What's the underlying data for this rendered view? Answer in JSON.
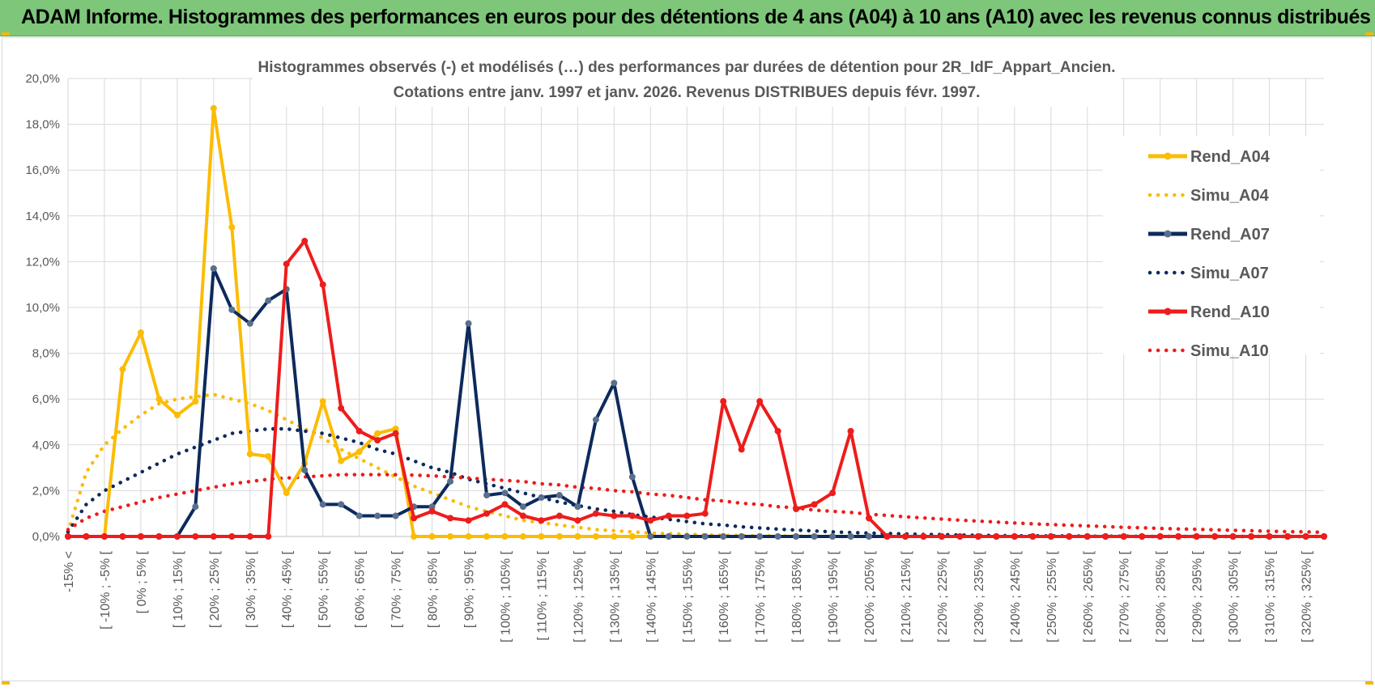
{
  "banner": {
    "title": "ADAM Informe. Histogrammes des performances en euros pour des détentions de 4 ans (A04) à 10 ans (A10) avec les revenus connus distribués",
    "color": "#7dc67a"
  },
  "chart_data": {
    "type": "line",
    "title_line1": "Histogrammes observés (-) et modélisés (…) des performances par durées de détention pour 2R_IdF_Appart_Ancien.",
    "title_line2": "Cotations entre janv. 1997 et janv. 2026. Revenus DISTRIBUES depuis févr. 1997.",
    "ylim": [
      0,
      20
    ],
    "yticks": [
      0,
      2,
      4,
      6,
      8,
      10,
      12,
      14,
      16,
      18,
      20
    ],
    "ytick_labels": [
      "0,0%",
      "2,0%",
      "4,0%",
      "6,0%",
      "8,0%",
      "10,0%",
      "12,0%",
      "14,0%",
      "16,0%",
      "18,0%",
      "20,0%"
    ],
    "gridlines": true,
    "legend_position": "right",
    "categories": [
      "-15% <",
      "[ -15% ; -10% [",
      "[ -10% ; -5% [",
      "[ -5% ; 0% [",
      "[ 0% ; 5% [",
      "[ 5% ; 10% [",
      "[ 10% ; 15% [",
      "[ 15% ; 20% [",
      "[ 20% ; 25% [",
      "[ 25% ; 30% [",
      "[ 30% ; 35% [",
      "[ 35% ; 40% [",
      "[ 40% ; 45% [",
      "[ 45% ; 50% [",
      "[ 50% ; 55% [",
      "[ 55% ; 60% [",
      "[ 60% ; 65% [",
      "[ 65% ; 70% [",
      "[ 70% ; 75% [",
      "[ 75% ; 80% [",
      "[ 80% ; 85% [",
      "[ 85% ; 90% [",
      "[ 90% ; 95% [",
      "[ 95% ; 100% [",
      "[ 100% ; 105% [",
      "[ 105% ; 110% [",
      "[ 110% ; 115% [",
      "[ 115% ; 120% [",
      "[ 120% ; 125% [",
      "[ 125% ; 130% [",
      "[ 130% ; 135% [",
      "[ 135% ; 140% [",
      "[ 140% ; 145% [",
      "[ 145% ; 150% [",
      "[ 150% ; 155% [",
      "[ 155% ; 160% [",
      "[ 160% ; 165% [",
      "[ 165% ; 170% [",
      "[ 170% ; 175% [",
      "[ 175% ; 180% [",
      "[ 180% ; 185% [",
      "[ 185% ; 190% [",
      "[ 190% ; 195% [",
      "[ 195% ; 200% [",
      "[ 200% ; 205% [",
      "[ 205% ; 210% [",
      "[ 210% ; 215% [",
      "[ 215% ; 220% [",
      "[ 220% ; 225% [",
      "[ 225% ; 230% [",
      "[ 230% ; 235% [",
      "[ 235% ; 240% [",
      "[ 240% ; 245% [",
      "[ 245% ; 250% [",
      "[ 250% ; 255% [",
      "[ 255% ; 260% [",
      "[ 260% ; 265% [",
      "[ 265% ; 270% [",
      "[ 270% ; 275% [",
      "[ 275% ; 280% [",
      "[ 280% ; 285% [",
      "[ 285% ; 290% [",
      "[ 290% ; 295% [",
      "[ 295% ; 300% [",
      "[ 300% ; 305% [",
      "[ 305% ; 310% [",
      "[ 310% ; 315% [",
      "[ 315% ; 320% [",
      "[ 320% ; 325% [",
      "[ 325% ; 330% ["
    ],
    "visible_tick_labels": [
      "-15% <",
      "[ -10% ; -5% [",
      "[ 0% ; 5% [",
      "[ 10% ; 15% [",
      "[ 20% ; 25% [",
      "[ 30% ; 35% [",
      "[ 40% ; 45% [",
      "[ 50% ; 55% [",
      "[ 60% ; 65% [",
      "[ 70% ; 75% [",
      "[ 80% ; 85% [",
      "[ 90% ; 95% [",
      "[ 100% ; 105% [",
      "[ 110% ; 115% [",
      "[ 120% ; 125% [",
      "[ 130% ; 135% [",
      "[ 140% ; 145% [",
      "[ 150% ; 155% [",
      "[ 160% ; 165% [",
      "[ 170% ; 175% [",
      "[ 180% ; 185% [",
      "[ 190% ; 195% [",
      "[ 200% ; 205% [",
      "[ 210% ; 215% [",
      "[ 220% ; 225% [",
      "[ 230% ; 235% [",
      "[ 240% ; 245% [",
      "[ 250% ; 255% [",
      "[ 260% ; 265% [",
      "[ 270% ; 275% [",
      "[ 280% ; 285% [",
      "[ 290% ; 295% [",
      "[ 300% ; 305% [",
      "[ 310% ; 315% [",
      "[ 320% ; 325% ["
    ],
    "series": [
      {
        "name": "Rend_A04",
        "color": "#fbbc05",
        "style": "solid",
        "markers": true,
        "values": [
          0,
          0,
          0,
          7.3,
          8.9,
          6.0,
          5.3,
          5.9,
          18.7,
          13.5,
          3.6,
          3.5,
          1.9,
          3.2,
          5.9,
          3.3,
          3.7,
          4.5,
          4.7,
          0,
          0,
          0,
          0,
          0,
          0,
          0,
          0,
          0,
          0,
          0,
          0,
          0,
          0,
          0,
          0,
          0,
          0,
          0,
          0,
          0,
          0,
          0,
          0,
          0,
          0,
          0,
          0,
          0,
          0,
          0,
          0,
          0,
          0,
          0,
          0,
          0,
          0,
          0,
          0,
          0,
          0,
          0,
          0,
          0,
          0,
          0,
          0,
          0,
          0,
          0
        ]
      },
      {
        "name": "Simu_A04",
        "color": "#fbbc05",
        "style": "dotted",
        "markers": false,
        "values": [
          0.2,
          2.8,
          4.0,
          4.7,
          5.3,
          5.8,
          6.0,
          6.1,
          6.2,
          6.0,
          5.8,
          5.5,
          5.1,
          4.7,
          4.3,
          3.8,
          3.4,
          3.0,
          2.6,
          2.2,
          1.9,
          1.6,
          1.3,
          1.1,
          0.9,
          0.7,
          0.6,
          0.5,
          0.4,
          0.3,
          0.25,
          0.2,
          0.15,
          0.12,
          0.1,
          0.07,
          0.05,
          0.04,
          0.03,
          0.02,
          0.01,
          0.01,
          0,
          0,
          0,
          0,
          0,
          0,
          0,
          0,
          0,
          0,
          0,
          0,
          0,
          0,
          0,
          0,
          0,
          0,
          0,
          0,
          0,
          0,
          0,
          0,
          0,
          0,
          0,
          0
        ]
      },
      {
        "name": "Rend_A07",
        "color": "#0d2a5c",
        "style": "solid",
        "markers": true,
        "values": [
          0,
          0,
          0,
          0,
          0,
          0,
          0,
          1.3,
          11.7,
          9.9,
          9.3,
          10.3,
          10.8,
          2.9,
          1.4,
          1.4,
          0.9,
          0.9,
          0.9,
          1.3,
          1.3,
          2.4,
          9.3,
          1.8,
          1.9,
          1.3,
          1.7,
          1.8,
          1.3,
          5.1,
          6.7,
          2.6,
          0,
          0,
          0,
          0,
          0,
          0,
          0,
          0,
          0,
          0,
          0,
          0,
          0,
          0,
          0,
          0,
          0,
          0,
          0,
          0,
          0,
          0,
          0,
          0,
          0,
          0,
          0,
          0,
          0,
          0,
          0,
          0,
          0,
          0,
          0,
          0,
          0,
          0
        ]
      },
      {
        "name": "Simu_A07",
        "color": "#0d2a5c",
        "style": "dotted",
        "markers": false,
        "values": [
          0.2,
          1.4,
          2.0,
          2.4,
          2.8,
          3.2,
          3.6,
          3.9,
          4.2,
          4.5,
          4.6,
          4.7,
          4.7,
          4.6,
          4.5,
          4.3,
          4.1,
          3.8,
          3.6,
          3.3,
          3.0,
          2.8,
          2.5,
          2.3,
          2.1,
          1.9,
          1.7,
          1.5,
          1.35,
          1.2,
          1.1,
          0.95,
          0.85,
          0.75,
          0.65,
          0.55,
          0.5,
          0.42,
          0.37,
          0.32,
          0.28,
          0.24,
          0.2,
          0.17,
          0.15,
          0.13,
          0.11,
          0.09,
          0.08,
          0.06,
          0.05,
          0.04,
          0.03,
          0.03,
          0.02,
          0.02,
          0.01,
          0.01,
          0.01,
          0,
          0,
          0,
          0,
          0,
          0,
          0,
          0,
          0,
          0,
          0
        ]
      },
      {
        "name": "Rend_A10",
        "color": "#ee1c1c",
        "style": "solid",
        "markers": true,
        "values": [
          0,
          0,
          0,
          0,
          0,
          0,
          0,
          0,
          0,
          0,
          0,
          0,
          11.9,
          12.9,
          11.0,
          5.6,
          4.6,
          4.2,
          4.5,
          0.8,
          1.1,
          0.8,
          0.7,
          1.0,
          1.4,
          0.9,
          0.7,
          0.9,
          0.7,
          1.0,
          0.9,
          0.9,
          0.7,
          0.9,
          0.9,
          1.0,
          5.9,
          3.8,
          5.9,
          4.6,
          1.2,
          1.4,
          1.9,
          4.6,
          0.8,
          0,
          0,
          0,
          0,
          0,
          0,
          0,
          0,
          0,
          0,
          0,
          0,
          0,
          0,
          0,
          0,
          0,
          0,
          0,
          0,
          0,
          0,
          0,
          0,
          0
        ]
      },
      {
        "name": "Simu_A10",
        "color": "#ee1c1c",
        "style": "dotted",
        "markers": false,
        "values": [
          0.3,
          0.8,
          1.1,
          1.3,
          1.5,
          1.7,
          1.85,
          2.0,
          2.15,
          2.3,
          2.4,
          2.5,
          2.55,
          2.6,
          2.65,
          2.7,
          2.7,
          2.7,
          2.7,
          2.68,
          2.65,
          2.6,
          2.55,
          2.5,
          2.45,
          2.4,
          2.3,
          2.25,
          2.15,
          2.1,
          2.0,
          1.95,
          1.85,
          1.8,
          1.7,
          1.6,
          1.55,
          1.45,
          1.4,
          1.3,
          1.25,
          1.15,
          1.1,
          1.05,
          0.97,
          0.92,
          0.86,
          0.81,
          0.76,
          0.71,
          0.67,
          0.63,
          0.59,
          0.55,
          0.52,
          0.49,
          0.46,
          0.43,
          0.4,
          0.38,
          0.35,
          0.33,
          0.31,
          0.29,
          0.27,
          0.25,
          0.23,
          0.21,
          0.2,
          0.18
        ]
      }
    ]
  }
}
